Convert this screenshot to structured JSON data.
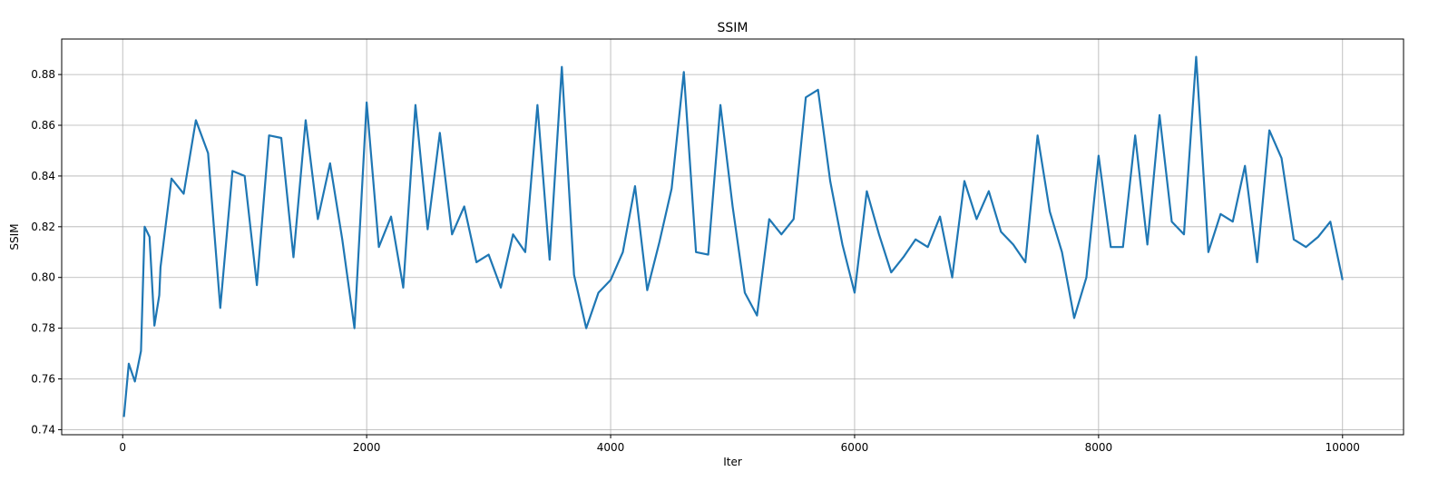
{
  "chart_data": {
    "type": "line",
    "title": "SSIM",
    "xlabel": "Iter",
    "ylabel": "SSIM",
    "xlim": [
      -500,
      10500
    ],
    "ylim": [
      0.738,
      0.894
    ],
    "xticks": [
      0,
      2000,
      4000,
      6000,
      8000,
      10000
    ],
    "yticks": [
      0.74,
      0.76,
      0.78,
      0.8,
      0.82,
      0.84,
      0.86,
      0.88
    ],
    "ytick_labels": [
      "0.74",
      "0.76",
      "0.78",
      "0.80",
      "0.82",
      "0.84",
      "0.86",
      "0.88"
    ],
    "grid": true,
    "legend": "none",
    "series": [
      {
        "color": "#1f77b4",
        "x": [
          10,
          50,
          100,
          150,
          180,
          220,
          260,
          300,
          310,
          400,
          500,
          600,
          700,
          800,
          900,
          1000,
          1100,
          1200,
          1300,
          1400,
          1500,
          1600,
          1700,
          1800,
          1900,
          2000,
          2100,
          2200,
          2300,
          2400,
          2500,
          2600,
          2700,
          2800,
          2900,
          3000,
          3100,
          3200,
          3300,
          3400,
          3500,
          3600,
          3700,
          3800,
          3900,
          4000,
          4100,
          4200,
          4300,
          4400,
          4500,
          4600,
          4700,
          4800,
          4900,
          5000,
          5100,
          5200,
          5300,
          5400,
          5500,
          5600,
          5700,
          5800,
          5900,
          6000,
          6100,
          6200,
          6300,
          6400,
          6500,
          6600,
          6700,
          6800,
          6900,
          7000,
          7100,
          7200,
          7300,
          7400,
          7500,
          7600,
          7700,
          7800,
          7900,
          8000,
          8100,
          8200,
          8300,
          8400,
          8500,
          8600,
          8700,
          8800,
          8900,
          9000,
          9100,
          9200,
          9300,
          9400,
          9500,
          9600,
          9700,
          9800,
          9900,
          10000
        ],
        "y": [
          0.745,
          0.766,
          0.759,
          0.771,
          0.82,
          0.816,
          0.781,
          0.793,
          0.804,
          0.839,
          0.833,
          0.862,
          0.849,
          0.788,
          0.842,
          0.84,
          0.797,
          0.856,
          0.855,
          0.808,
          0.862,
          0.823,
          0.845,
          0.815,
          0.78,
          0.869,
          0.812,
          0.824,
          0.796,
          0.868,
          0.819,
          0.857,
          0.817,
          0.828,
          0.806,
          0.809,
          0.796,
          0.817,
          0.81,
          0.868,
          0.807,
          0.883,
          0.801,
          0.78,
          0.794,
          0.799,
          0.81,
          0.836,
          0.795,
          0.814,
          0.835,
          0.881,
          0.81,
          0.809,
          0.868,
          0.828,
          0.794,
          0.785,
          0.823,
          0.817,
          0.823,
          0.871,
          0.874,
          0.838,
          0.813,
          0.794,
          0.834,
          0.817,
          0.802,
          0.808,
          0.815,
          0.812,
          0.824,
          0.8,
          0.838,
          0.823,
          0.834,
          0.818,
          0.813,
          0.806,
          0.856,
          0.826,
          0.81,
          0.784,
          0.8,
          0.848,
          0.812,
          0.812,
          0.856,
          0.813,
          0.864,
          0.822,
          0.817,
          0.887,
          0.81,
          0.825,
          0.822,
          0.844,
          0.806,
          0.858,
          0.847,
          0.815,
          0.812,
          0.816,
          0.822,
          0.799
        ]
      }
    ]
  }
}
